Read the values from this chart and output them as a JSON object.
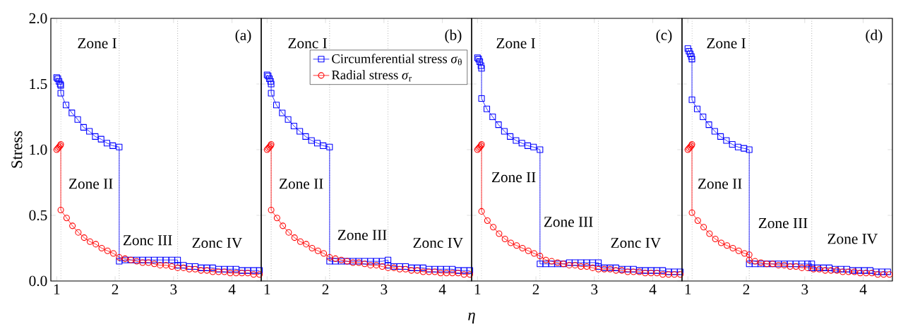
{
  "chart_data": [
    {
      "type": "line",
      "ylabel": "Stress",
      "xlim": [
        0.9,
        4.5
      ],
      "ylim": [
        0,
        2
      ],
      "xticks": [
        1,
        2,
        3,
        4
      ],
      "yticks": [
        {
          "value": 0,
          "label": "0.0"
        },
        {
          "value": 0.5,
          "label": "0.5"
        },
        {
          "value": 1,
          "label": "1.0"
        },
        {
          "value": 1.5,
          "label": "1.5"
        },
        {
          "value": 2,
          "label": "2.0"
        }
      ],
      "annotations": [
        "(a)",
        "Zone I",
        "Zone II",
        "Zonc III",
        "Zonc IV"
      ],
      "ref_lines": [
        {
          "axis": "x",
          "value": 1.07,
          "color": "#808080",
          "line_style": "dotted"
        },
        {
          "axis": "x",
          "value": 2.07,
          "color": "#808080",
          "line_style": "dotted"
        },
        {
          "axis": "x",
          "value": 3.07,
          "color": "#808080",
          "line_style": "dotted"
        }
      ],
      "series": [
        {
          "color": "#0000ff",
          "marker": "square",
          "x": [
            1.0,
            1.02,
            1.04,
            1.06,
            1.07,
            1.07,
            1.16,
            1.26,
            1.36,
            1.46,
            1.56,
            1.66,
            1.76,
            1.86,
            1.96,
            2.07,
            2.07,
            2.17,
            2.27,
            2.37,
            2.47,
            2.57,
            2.67,
            2.77,
            2.87,
            2.97,
            3.07,
            3.07,
            3.17,
            3.27,
            3.37,
            3.47,
            3.57,
            3.67,
            3.77,
            3.87,
            3.97,
            4.07,
            4.17,
            4.27,
            4.37,
            4.47
          ],
          "values": [
            1.55,
            1.54,
            1.52,
            1.5,
            1.49,
            1.43,
            1.34,
            1.28,
            1.23,
            1.17,
            1.14,
            1.1,
            1.08,
            1.05,
            1.03,
            1.02,
            0.15,
            0.16,
            0.16,
            0.16,
            0.16,
            0.16,
            0.16,
            0.16,
            0.16,
            0.16,
            0.16,
            0.12,
            0.12,
            0.11,
            0.11,
            0.1,
            0.1,
            0.1,
            0.09,
            0.09,
            0.09,
            0.09,
            0.08,
            0.08,
            0.08,
            0.08
          ]
        },
        {
          "color": "#ff0000",
          "marker": "circle",
          "x": [
            1.0,
            1.02,
            1.04,
            1.06,
            1.07,
            1.07,
            1.17,
            1.27,
            1.37,
            1.47,
            1.57,
            1.67,
            1.77,
            1.87,
            1.97,
            2.07,
            2.17,
            2.27,
            2.37,
            2.47,
            2.57,
            2.67,
            2.77,
            2.87,
            2.97,
            3.07,
            3.17,
            3.27,
            3.37,
            3.47,
            3.57,
            3.67,
            3.77,
            3.87,
            3.97,
            4.07,
            4.17,
            4.27,
            4.37,
            4.47
          ],
          "values": [
            1.0,
            1.01,
            1.02,
            1.03,
            1.04,
            0.54,
            0.48,
            0.42,
            0.37,
            0.33,
            0.3,
            0.28,
            0.25,
            0.23,
            0.21,
            0.18,
            0.17,
            0.16,
            0.15,
            0.14,
            0.14,
            0.13,
            0.12,
            0.12,
            0.11,
            0.1,
            0.1,
            0.09,
            0.09,
            0.08,
            0.08,
            0.07,
            0.07,
            0.07,
            0.06,
            0.06,
            0.06,
            0.06,
            0.05,
            0.05
          ]
        }
      ]
    },
    {
      "type": "line",
      "xlabel": "*η*",
      "xlim": [
        0.9,
        4.5
      ],
      "ylim": [
        0,
        2
      ],
      "xticks": [
        1,
        2,
        3,
        4
      ],
      "tick_labels": "x",
      "legend": "top right",
      "yticks": [
        {
          "value": 0,
          "label": null
        },
        {
          "value": 0.5,
          "label": null
        },
        {
          "value": 1,
          "label": null
        },
        {
          "value": 1.5,
          "label": null
        },
        {
          "value": 2,
          "label": null
        }
      ],
      "annotations": [
        "(b)",
        "Zonc I",
        "Zone II",
        "Zone III",
        "Zonc IV"
      ],
      "ref_lines": [
        {
          "axis": "x",
          "value": 1.07,
          "color": "#808080",
          "line_style": "dotted"
        },
        {
          "axis": "x",
          "value": 2.07,
          "color": "#808080",
          "line_style": "dotted"
        },
        {
          "axis": "x",
          "value": 3.07,
          "color": "#808080",
          "line_style": "dotted"
        }
      ],
      "series": [
        {
          "name": "Circumferential stress *σ*$_{θ}$",
          "color": "#0000ff",
          "marker": "square",
          "x": [
            1.0,
            1.02,
            1.04,
            1.06,
            1.07,
            1.07,
            1.16,
            1.26,
            1.36,
            1.46,
            1.56,
            1.66,
            1.76,
            1.86,
            1.96,
            2.07,
            2.07,
            2.17,
            2.27,
            2.37,
            2.47,
            2.57,
            2.67,
            2.77,
            2.87,
            2.97,
            3.07,
            3.07,
            3.17,
            3.27,
            3.37,
            3.47,
            3.57,
            3.67,
            3.77,
            3.87,
            3.97,
            4.07,
            4.17,
            4.27,
            4.37,
            4.47
          ],
          "values": [
            1.57,
            1.56,
            1.54,
            1.52,
            1.5,
            1.43,
            1.34,
            1.28,
            1.23,
            1.18,
            1.14,
            1.1,
            1.07,
            1.05,
            1.03,
            1.02,
            0.15,
            0.15,
            0.15,
            0.15,
            0.15,
            0.15,
            0.15,
            0.15,
            0.15,
            0.15,
            0.16,
            0.12,
            0.11,
            0.11,
            0.11,
            0.1,
            0.1,
            0.1,
            0.09,
            0.09,
            0.09,
            0.09,
            0.09,
            0.08,
            0.08,
            0.08
          ]
        },
        {
          "name": "Radial stress *σ*$_{r}$",
          "color": "#ff0000",
          "marker": "circle",
          "x": [
            1.0,
            1.02,
            1.04,
            1.06,
            1.07,
            1.07,
            1.17,
            1.27,
            1.37,
            1.47,
            1.57,
            1.67,
            1.77,
            1.87,
            1.97,
            2.07,
            2.17,
            2.27,
            2.37,
            2.47,
            2.57,
            2.67,
            2.77,
            2.87,
            2.97,
            3.07,
            3.17,
            3.27,
            3.37,
            3.47,
            3.57,
            3.67,
            3.77,
            3.87,
            3.97,
            4.07,
            4.17,
            4.27,
            4.37,
            4.47
          ],
          "values": [
            1.0,
            1.01,
            1.02,
            1.03,
            1.04,
            0.54,
            0.48,
            0.42,
            0.37,
            0.33,
            0.3,
            0.28,
            0.25,
            0.23,
            0.21,
            0.18,
            0.17,
            0.16,
            0.15,
            0.14,
            0.14,
            0.13,
            0.12,
            0.12,
            0.11,
            0.1,
            0.1,
            0.09,
            0.09,
            0.08,
            0.08,
            0.07,
            0.07,
            0.07,
            0.06,
            0.06,
            0.06,
            0.06,
            0.05,
            0.05
          ]
        }
      ]
    },
    {
      "type": "line",
      "xlim": [
        0.9,
        4.5
      ],
      "ylim": [
        0,
        2
      ],
      "xticks": [
        1,
        2,
        3,
        4
      ],
      "tick_labels": "x",
      "yticks": [
        {
          "value": 0,
          "label": null
        },
        {
          "value": 0.5,
          "label": null
        },
        {
          "value": 1,
          "label": null
        },
        {
          "value": 1.5,
          "label": null
        },
        {
          "value": 2,
          "label": null
        }
      ],
      "annotations": [
        "(c)",
        "Zone I",
        "Zone II",
        "Zone III",
        "Zonc IV"
      ],
      "ref_lines": [
        {
          "axis": "x",
          "value": 1.07,
          "color": "#808080",
          "line_style": "dotted"
        },
        {
          "axis": "x",
          "value": 2.07,
          "color": "#808080",
          "line_style": "dotted"
        },
        {
          "axis": "x",
          "value": 3.07,
          "color": "#808080",
          "line_style": "dotted"
        }
      ],
      "series": [
        {
          "color": "#0000ff",
          "marker": "square",
          "x": [
            1.0,
            1.02,
            1.04,
            1.06,
            1.07,
            1.07,
            1.16,
            1.26,
            1.36,
            1.46,
            1.56,
            1.66,
            1.76,
            1.86,
            1.96,
            2.07,
            2.07,
            2.17,
            2.27,
            2.37,
            2.47,
            2.57,
            2.67,
            2.77,
            2.87,
            2.97,
            3.07,
            3.07,
            3.17,
            3.27,
            3.37,
            3.47,
            3.57,
            3.67,
            3.77,
            3.87,
            3.97,
            4.07,
            4.17,
            4.27,
            4.37,
            4.47
          ],
          "values": [
            1.7,
            1.69,
            1.67,
            1.64,
            1.62,
            1.39,
            1.31,
            1.25,
            1.19,
            1.14,
            1.1,
            1.07,
            1.05,
            1.03,
            1.02,
            1.0,
            0.13,
            0.13,
            0.13,
            0.13,
            0.13,
            0.14,
            0.14,
            0.14,
            0.14,
            0.14,
            0.14,
            0.11,
            0.1,
            0.1,
            0.1,
            0.09,
            0.09,
            0.09,
            0.08,
            0.08,
            0.08,
            0.08,
            0.08,
            0.07,
            0.07,
            0.07
          ]
        },
        {
          "color": "#ff0000",
          "marker": "circle",
          "x": [
            1.0,
            1.02,
            1.04,
            1.06,
            1.07,
            1.07,
            1.17,
            1.27,
            1.37,
            1.47,
            1.57,
            1.67,
            1.77,
            1.87,
            1.97,
            2.07,
            2.17,
            2.27,
            2.37,
            2.47,
            2.57,
            2.67,
            2.77,
            2.87,
            2.97,
            3.07,
            3.17,
            3.27,
            3.37,
            3.47,
            3.57,
            3.67,
            3.77,
            3.87,
            3.97,
            4.07,
            4.17,
            4.27,
            4.37,
            4.47
          ],
          "values": [
            1.0,
            1.01,
            1.02,
            1.03,
            1.04,
            0.53,
            0.46,
            0.41,
            0.36,
            0.32,
            0.29,
            0.27,
            0.25,
            0.23,
            0.21,
            0.19,
            0.16,
            0.15,
            0.14,
            0.13,
            0.12,
            0.12,
            0.11,
            0.11,
            0.1,
            0.09,
            0.09,
            0.09,
            0.08,
            0.08,
            0.07,
            0.07,
            0.07,
            0.06,
            0.06,
            0.06,
            0.05,
            0.05,
            0.05,
            0.05
          ]
        }
      ]
    },
    {
      "type": "line",
      "xlim": [
        0.9,
        4.5
      ],
      "ylim": [
        0,
        2
      ],
      "xticks": [
        1,
        2,
        3,
        4
      ],
      "tick_labels": "x",
      "yticks": [
        {
          "value": 0,
          "label": null
        },
        {
          "value": 0.5,
          "label": null
        },
        {
          "value": 1,
          "label": null
        },
        {
          "value": 1.5,
          "label": null
        },
        {
          "value": 2,
          "label": null
        }
      ],
      "annotations": [
        "(d)",
        "Zone I",
        "Zone II",
        "Zone III",
        "Zone IV"
      ],
      "ref_lines": [
        {
          "axis": "x",
          "value": 1.07,
          "color": "#808080",
          "line_style": "dotted"
        },
        {
          "axis": "x",
          "value": 2.05,
          "color": "#808080",
          "line_style": "dotted"
        },
        {
          "axis": "x",
          "value": 3.12,
          "color": "#808080",
          "line_style": "dotted"
        }
      ],
      "series": [
        {
          "color": "#0000ff",
          "marker": "square",
          "x": [
            1.0,
            1.02,
            1.04,
            1.06,
            1.07,
            1.07,
            1.16,
            1.26,
            1.36,
            1.46,
            1.56,
            1.66,
            1.76,
            1.86,
            1.96,
            2.05,
            2.05,
            2.15,
            2.25,
            2.35,
            2.45,
            2.55,
            2.65,
            2.75,
            2.85,
            2.95,
            3.05,
            3.12,
            3.12,
            3.22,
            3.32,
            3.42,
            3.52,
            3.62,
            3.72,
            3.82,
            3.92,
            4.02,
            4.12,
            4.22,
            4.32,
            4.42
          ],
          "values": [
            1.77,
            1.75,
            1.73,
            1.71,
            1.69,
            1.38,
            1.31,
            1.25,
            1.19,
            1.14,
            1.1,
            1.07,
            1.04,
            1.02,
            1.01,
            1.0,
            0.13,
            0.13,
            0.13,
            0.13,
            0.13,
            0.13,
            0.13,
            0.13,
            0.13,
            0.13,
            0.13,
            0.13,
            0.1,
            0.1,
            0.1,
            0.1,
            0.09,
            0.09,
            0.09,
            0.08,
            0.08,
            0.08,
            0.08,
            0.07,
            0.07,
            0.07
          ]
        },
        {
          "color": "#ff0000",
          "marker": "circle",
          "x": [
            1.0,
            1.02,
            1.04,
            1.06,
            1.07,
            1.07,
            1.17,
            1.27,
            1.37,
            1.47,
            1.57,
            1.67,
            1.77,
            1.87,
            1.97,
            2.05,
            2.05,
            2.15,
            2.25,
            2.35,
            2.45,
            2.55,
            2.65,
            2.75,
            2.85,
            2.95,
            3.05,
            3.15,
            3.25,
            3.35,
            3.45,
            3.55,
            3.65,
            3.75,
            3.85,
            3.95,
            4.05,
            4.15,
            4.25,
            4.35,
            4.45
          ],
          "values": [
            1.0,
            1.01,
            1.02,
            1.03,
            1.04,
            0.52,
            0.46,
            0.41,
            0.36,
            0.32,
            0.29,
            0.27,
            0.25,
            0.23,
            0.21,
            0.2,
            0.16,
            0.15,
            0.14,
            0.13,
            0.13,
            0.12,
            0.12,
            0.11,
            0.11,
            0.1,
            0.1,
            0.09,
            0.09,
            0.08,
            0.08,
            0.08,
            0.07,
            0.07,
            0.07,
            0.06,
            0.06,
            0.06,
            0.05,
            0.05,
            0.05
          ]
        }
      ]
    }
  ]
}
